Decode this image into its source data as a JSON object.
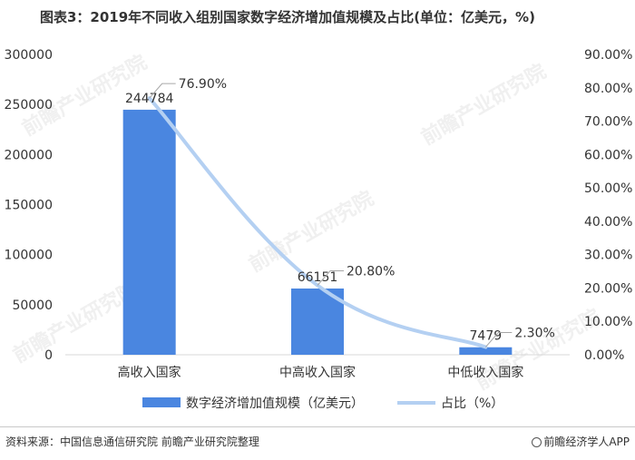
{
  "title": "图表3：2019年不同收入组别国家数字经济增加值规模及占比(单位：亿美元，%)",
  "source": "资料来源：中国信息通信研究院 前瞻产业研究院整理",
  "brand": "前瞻经济学人APP",
  "watermark": "前瞻产业研究院",
  "colors": {
    "bar": "#4a86e0",
    "line": "#b4d0f2",
    "axis": "#333333",
    "grid": "#d9d9d9"
  },
  "chart_data": {
    "type": "bar",
    "categories": [
      "高收入国家",
      "中高收入国家",
      "中低收入国家"
    ],
    "series": [
      {
        "name": "数字经济增加值规模（亿美元）",
        "type": "bar",
        "axis": "left",
        "values": [
          244784,
          66151,
          7479
        ],
        "labels": [
          "244784",
          "66151",
          "7479"
        ]
      },
      {
        "name": "占比（%）",
        "type": "line",
        "axis": "right",
        "values": [
          76.9,
          20.8,
          2.3
        ],
        "labels": [
          "76.90%",
          "20.80%",
          "2.30%"
        ]
      }
    ],
    "y_left": {
      "min": 0,
      "max": 300000,
      "ticks": [
        "0",
        "50000",
        "100000",
        "150000",
        "200000",
        "250000",
        "300000"
      ]
    },
    "y_right": {
      "min": 0,
      "max": 90,
      "ticks": [
        "0.00%",
        "10.00%",
        "20.00%",
        "30.00%",
        "40.00%",
        "50.00%",
        "60.00%",
        "70.00%",
        "80.00%",
        "90.00%"
      ]
    },
    "grid": false,
    "legend_position": "bottom"
  }
}
